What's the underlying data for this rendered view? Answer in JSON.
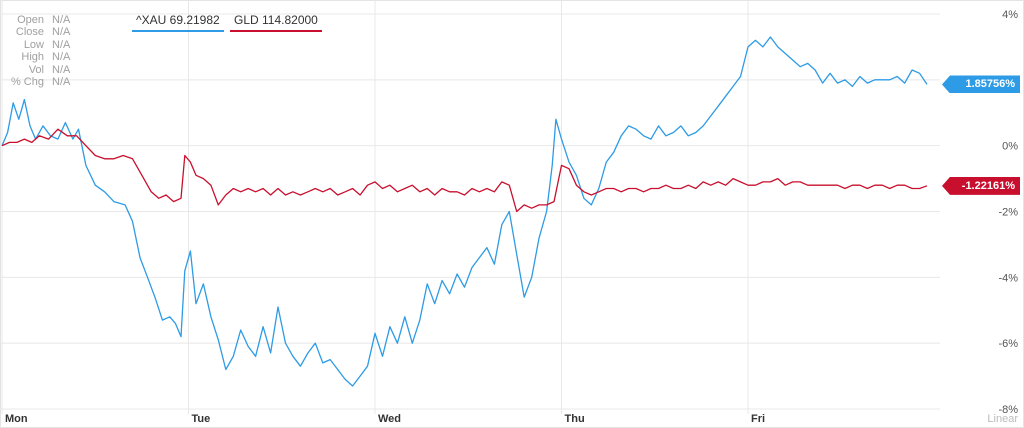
{
  "info_panel": [
    {
      "label": "Open",
      "value": "N/A"
    },
    {
      "label": "Close",
      "value": "N/A"
    },
    {
      "label": "Low",
      "value": "N/A"
    },
    {
      "label": "High",
      "value": "N/A"
    },
    {
      "label": "Vol",
      "value": "N/A"
    },
    {
      "label": "% Chg",
      "value": "N/A"
    }
  ],
  "legend": [
    {
      "label": "^XAU 69.21982",
      "color": "#2d9be5"
    },
    {
      "label": "GLD 114.82000",
      "color": "#c8102e"
    }
  ],
  "scale_label": "Linear",
  "last_value_tags": [
    {
      "label": "1.85756%",
      "color": "#2d9be5"
    },
    {
      "label": "-1.22161%",
      "color": "#c8102e"
    }
  ],
  "chart_data": {
    "type": "line",
    "ylim": [
      -8,
      4.5
    ],
    "y_ticks": [
      "4%",
      "2%",
      "0%",
      "-2%",
      "-4%",
      "-6%",
      "-8%"
    ],
    "y_tick_values": [
      4,
      2,
      0,
      -2,
      -4,
      -6,
      -8
    ],
    "x_ticks": [
      "Mon",
      "Tue",
      "Wed",
      "Thu",
      "Fri"
    ],
    "x_tick_positions": [
      0,
      1,
      2,
      3,
      4
    ],
    "xlim": [
      0,
      5
    ],
    "grid": true,
    "series": [
      {
        "name": "^XAU",
        "color": "#2d9be5",
        "points": [
          [
            0.0,
            0.0
          ],
          [
            0.03,
            0.4
          ],
          [
            0.06,
            1.3
          ],
          [
            0.09,
            0.8
          ],
          [
            0.12,
            1.4
          ],
          [
            0.15,
            0.6
          ],
          [
            0.18,
            0.2
          ],
          [
            0.22,
            0.6
          ],
          [
            0.26,
            0.3
          ],
          [
            0.3,
            0.2
          ],
          [
            0.34,
            0.7
          ],
          [
            0.38,
            0.2
          ],
          [
            0.41,
            0.5
          ],
          [
            0.45,
            -0.6
          ],
          [
            0.5,
            -1.2
          ],
          [
            0.55,
            -1.4
          ],
          [
            0.6,
            -1.7
          ],
          [
            0.66,
            -1.8
          ],
          [
            0.7,
            -2.3
          ],
          [
            0.74,
            -3.4
          ],
          [
            0.78,
            -4.0
          ],
          [
            0.82,
            -4.6
          ],
          [
            0.86,
            -5.3
          ],
          [
            0.9,
            -5.2
          ],
          [
            0.93,
            -5.4
          ],
          [
            0.96,
            -5.8
          ],
          [
            0.98,
            -3.8
          ],
          [
            1.01,
            -3.2
          ],
          [
            1.04,
            -4.8
          ],
          [
            1.08,
            -4.2
          ],
          [
            1.12,
            -5.2
          ],
          [
            1.16,
            -5.9
          ],
          [
            1.2,
            -6.8
          ],
          [
            1.24,
            -6.4
          ],
          [
            1.28,
            -5.6
          ],
          [
            1.32,
            -6.1
          ],
          [
            1.36,
            -6.4
          ],
          [
            1.4,
            -5.5
          ],
          [
            1.44,
            -6.3
          ],
          [
            1.48,
            -4.9
          ],
          [
            1.52,
            -6.0
          ],
          [
            1.56,
            -6.4
          ],
          [
            1.6,
            -6.7
          ],
          [
            1.64,
            -6.3
          ],
          [
            1.68,
            -6.0
          ],
          [
            1.72,
            -6.6
          ],
          [
            1.76,
            -6.5
          ],
          [
            1.8,
            -6.8
          ],
          [
            1.84,
            -7.1
          ],
          [
            1.88,
            -7.3
          ],
          [
            1.92,
            -7.0
          ],
          [
            1.96,
            -6.7
          ],
          [
            2.0,
            -5.7
          ],
          [
            2.04,
            -6.4
          ],
          [
            2.08,
            -5.5
          ],
          [
            2.12,
            -6.0
          ],
          [
            2.16,
            -5.2
          ],
          [
            2.2,
            -6.0
          ],
          [
            2.24,
            -5.3
          ],
          [
            2.28,
            -4.2
          ],
          [
            2.32,
            -4.8
          ],
          [
            2.36,
            -4.1
          ],
          [
            2.4,
            -4.5
          ],
          [
            2.44,
            -3.9
          ],
          [
            2.48,
            -4.3
          ],
          [
            2.52,
            -3.7
          ],
          [
            2.56,
            -3.4
          ],
          [
            2.6,
            -3.1
          ],
          [
            2.64,
            -3.6
          ],
          [
            2.68,
            -2.4
          ],
          [
            2.72,
            -2.0
          ],
          [
            2.76,
            -3.3
          ],
          [
            2.8,
            -4.6
          ],
          [
            2.84,
            -4.0
          ],
          [
            2.88,
            -2.8
          ],
          [
            2.92,
            -2.0
          ],
          [
            2.95,
            -0.6
          ],
          [
            2.97,
            0.8
          ],
          [
            3.0,
            0.2
          ],
          [
            3.04,
            -0.5
          ],
          [
            3.08,
            -0.9
          ],
          [
            3.12,
            -1.6
          ],
          [
            3.16,
            -1.8
          ],
          [
            3.2,
            -1.3
          ],
          [
            3.24,
            -0.5
          ],
          [
            3.28,
            -0.2
          ],
          [
            3.32,
            0.3
          ],
          [
            3.36,
            0.6
          ],
          [
            3.4,
            0.5
          ],
          [
            3.44,
            0.3
          ],
          [
            3.48,
            0.2
          ],
          [
            3.52,
            0.6
          ],
          [
            3.56,
            0.3
          ],
          [
            3.6,
            0.4
          ],
          [
            3.64,
            0.6
          ],
          [
            3.68,
            0.3
          ],
          [
            3.72,
            0.4
          ],
          [
            3.76,
            0.6
          ],
          [
            3.8,
            0.9
          ],
          [
            3.84,
            1.2
          ],
          [
            3.88,
            1.5
          ],
          [
            3.92,
            1.8
          ],
          [
            3.96,
            2.1
          ],
          [
            4.0,
            3.0
          ],
          [
            4.04,
            3.2
          ],
          [
            4.08,
            3.0
          ],
          [
            4.12,
            3.3
          ],
          [
            4.16,
            3.0
          ],
          [
            4.2,
            2.8
          ],
          [
            4.24,
            2.6
          ],
          [
            4.28,
            2.4
          ],
          [
            4.32,
            2.5
          ],
          [
            4.36,
            2.3
          ],
          [
            4.4,
            1.9
          ],
          [
            4.44,
            2.2
          ],
          [
            4.48,
            1.9
          ],
          [
            4.52,
            2.0
          ],
          [
            4.56,
            1.8
          ],
          [
            4.6,
            2.1
          ],
          [
            4.64,
            1.9
          ],
          [
            4.68,
            2.0
          ],
          [
            4.72,
            2.0
          ],
          [
            4.76,
            2.0
          ],
          [
            4.8,
            2.1
          ],
          [
            4.84,
            1.9
          ],
          [
            4.88,
            2.3
          ],
          [
            4.92,
            2.2
          ],
          [
            4.96,
            1.86
          ]
        ]
      },
      {
        "name": "GLD",
        "color": "#c8102e",
        "points": [
          [
            0.0,
            0.0
          ],
          [
            0.04,
            0.1
          ],
          [
            0.08,
            0.1
          ],
          [
            0.12,
            0.2
          ],
          [
            0.16,
            0.1
          ],
          [
            0.2,
            0.3
          ],
          [
            0.25,
            0.2
          ],
          [
            0.3,
            0.5
          ],
          [
            0.35,
            0.3
          ],
          [
            0.4,
            0.3
          ],
          [
            0.45,
            0.0
          ],
          [
            0.5,
            -0.3
          ],
          [
            0.55,
            -0.4
          ],
          [
            0.6,
            -0.4
          ],
          [
            0.65,
            -0.3
          ],
          [
            0.7,
            -0.4
          ],
          [
            0.75,
            -0.9
          ],
          [
            0.8,
            -1.4
          ],
          [
            0.84,
            -1.6
          ],
          [
            0.88,
            -1.5
          ],
          [
            0.92,
            -1.7
          ],
          [
            0.96,
            -1.6
          ],
          [
            0.98,
            -0.3
          ],
          [
            1.01,
            -0.5
          ],
          [
            1.04,
            -0.9
          ],
          [
            1.08,
            -1.0
          ],
          [
            1.12,
            -1.2
          ],
          [
            1.16,
            -1.8
          ],
          [
            1.2,
            -1.5
          ],
          [
            1.24,
            -1.3
          ],
          [
            1.28,
            -1.4
          ],
          [
            1.32,
            -1.3
          ],
          [
            1.36,
            -1.4
          ],
          [
            1.4,
            -1.3
          ],
          [
            1.44,
            -1.5
          ],
          [
            1.48,
            -1.3
          ],
          [
            1.52,
            -1.5
          ],
          [
            1.56,
            -1.4
          ],
          [
            1.6,
            -1.5
          ],
          [
            1.64,
            -1.4
          ],
          [
            1.68,
            -1.3
          ],
          [
            1.72,
            -1.4
          ],
          [
            1.76,
            -1.3
          ],
          [
            1.8,
            -1.5
          ],
          [
            1.84,
            -1.4
          ],
          [
            1.88,
            -1.3
          ],
          [
            1.92,
            -1.5
          ],
          [
            1.96,
            -1.2
          ],
          [
            2.0,
            -1.1
          ],
          [
            2.04,
            -1.3
          ],
          [
            2.08,
            -1.2
          ],
          [
            2.12,
            -1.4
          ],
          [
            2.16,
            -1.3
          ],
          [
            2.2,
            -1.2
          ],
          [
            2.24,
            -1.4
          ],
          [
            2.28,
            -1.3
          ],
          [
            2.32,
            -1.5
          ],
          [
            2.36,
            -1.3
          ],
          [
            2.4,
            -1.4
          ],
          [
            2.44,
            -1.4
          ],
          [
            2.48,
            -1.5
          ],
          [
            2.52,
            -1.3
          ],
          [
            2.56,
            -1.4
          ],
          [
            2.6,
            -1.3
          ],
          [
            2.64,
            -1.4
          ],
          [
            2.68,
            -1.1
          ],
          [
            2.72,
            -1.2
          ],
          [
            2.76,
            -2.0
          ],
          [
            2.8,
            -1.8
          ],
          [
            2.84,
            -1.9
          ],
          [
            2.88,
            -1.8
          ],
          [
            2.92,
            -1.8
          ],
          [
            2.96,
            -1.7
          ],
          [
            3.0,
            -0.6
          ],
          [
            3.04,
            -0.7
          ],
          [
            3.08,
            -1.2
          ],
          [
            3.12,
            -1.4
          ],
          [
            3.16,
            -1.5
          ],
          [
            3.2,
            -1.4
          ],
          [
            3.24,
            -1.3
          ],
          [
            3.28,
            -1.3
          ],
          [
            3.32,
            -1.4
          ],
          [
            3.36,
            -1.3
          ],
          [
            3.4,
            -1.3
          ],
          [
            3.44,
            -1.4
          ],
          [
            3.48,
            -1.3
          ],
          [
            3.52,
            -1.3
          ],
          [
            3.56,
            -1.2
          ],
          [
            3.6,
            -1.3
          ],
          [
            3.64,
            -1.3
          ],
          [
            3.68,
            -1.2
          ],
          [
            3.72,
            -1.3
          ],
          [
            3.76,
            -1.1
          ],
          [
            3.8,
            -1.2
          ],
          [
            3.84,
            -1.1
          ],
          [
            3.88,
            -1.2
          ],
          [
            3.92,
            -1.0
          ],
          [
            3.96,
            -1.1
          ],
          [
            4.0,
            -1.2
          ],
          [
            4.04,
            -1.2
          ],
          [
            4.08,
            -1.1
          ],
          [
            4.12,
            -1.1
          ],
          [
            4.16,
            -1.0
          ],
          [
            4.2,
            -1.2
          ],
          [
            4.24,
            -1.1
          ],
          [
            4.28,
            -1.1
          ],
          [
            4.32,
            -1.2
          ],
          [
            4.36,
            -1.2
          ],
          [
            4.4,
            -1.2
          ],
          [
            4.44,
            -1.2
          ],
          [
            4.48,
            -1.2
          ],
          [
            4.52,
            -1.3
          ],
          [
            4.56,
            -1.2
          ],
          [
            4.6,
            -1.2
          ],
          [
            4.64,
            -1.3
          ],
          [
            4.68,
            -1.2
          ],
          [
            4.72,
            -1.2
          ],
          [
            4.76,
            -1.3
          ],
          [
            4.8,
            -1.2
          ],
          [
            4.84,
            -1.2
          ],
          [
            4.88,
            -1.3
          ],
          [
            4.92,
            -1.3
          ],
          [
            4.96,
            -1.22
          ]
        ]
      }
    ]
  }
}
